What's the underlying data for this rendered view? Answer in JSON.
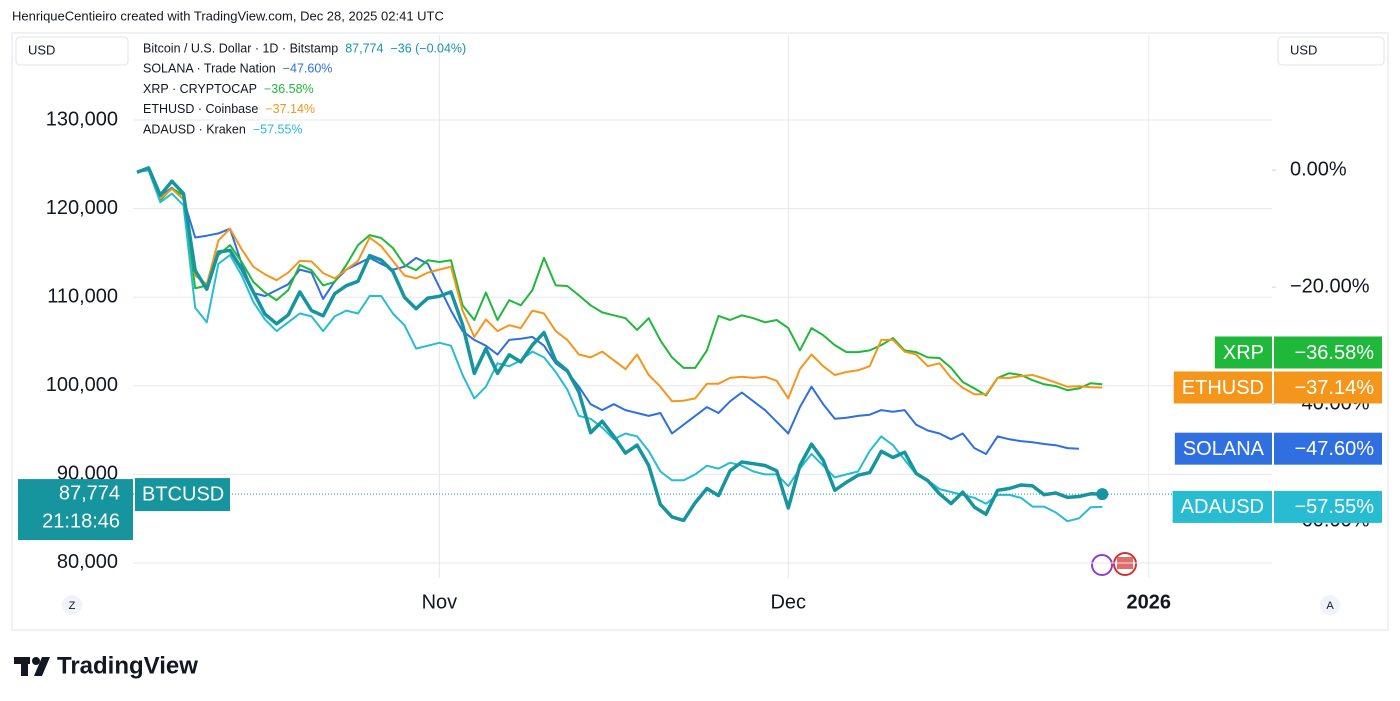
{
  "header": "HenriqueCentieiro created with TradingView.com, Dec 28, 2025 02:41 UTC",
  "brand": "TradingView",
  "buttons": [
    "Z",
    "A"
  ],
  "chart_data": {
    "type": "line",
    "left_unit": "USD",
    "right_unit": "USD",
    "grid": true,
    "categories": [
      null,
      null,
      null,
      null,
      null,
      null,
      null,
      null,
      null,
      null,
      null,
      null,
      null,
      null,
      null,
      null,
      null,
      null,
      null,
      null,
      null,
      null,
      null,
      null,
      null,
      null,
      "Nov",
      null,
      null,
      null,
      null,
      null,
      null,
      null,
      null,
      null,
      null,
      null,
      null,
      null,
      null,
      null,
      null,
      null,
      null,
      null,
      null,
      null,
      null,
      null,
      null,
      null,
      null,
      null,
      null,
      null,
      "Dec",
      null,
      null,
      null,
      null,
      null,
      null,
      null,
      null,
      null,
      null,
      null,
      null,
      null,
      null,
      null,
      null,
      null,
      null,
      null,
      null,
      null,
      null,
      null,
      null,
      null,
      null,
      null,
      null,
      null,
      null,
      "2026",
      null,
      null,
      null,
      null,
      null,
      null,
      null,
      null,
      null,
      null
    ],
    "ylim": [
      78300,
      139600
    ],
    "yticks": [
      {
        "value": 80000,
        "label": "80,000"
      },
      {
        "value": 90000,
        "label": "90,000"
      },
      {
        "value": 100000,
        "label": "100,000"
      },
      {
        "value": 110000,
        "label": "110,000"
      },
      {
        "value": 120000,
        "label": "120,000"
      },
      {
        "value": 130000,
        "label": "130,000"
      }
    ],
    "y2lim": [
      -69.7,
      23.1
    ],
    "y2ticks": [
      {
        "value": 0,
        "label": "0.00%"
      },
      {
        "value": -20,
        "label": "−20.00%"
      },
      {
        "value": -40,
        "label": "−40.00%"
      },
      {
        "value": -60,
        "label": "−60.00%"
      }
    ],
    "series": [
      {
        "name": "BTCUSD",
        "legend_name": "Bitcoin / U.S. Dollar · 1D · Bitstamp",
        "color": "#16959e",
        "last_label": "87,774",
        "change": "−36 (−0.04%)",
        "countdown": "21:18:46",
        "values": [
          124100,
          124600,
          121500,
          123100,
          121700,
          113000,
          110900,
          115100,
          115300,
          113200,
          110600,
          108100,
          107000,
          108000,
          110600,
          108500,
          107900,
          110400,
          111300,
          111800,
          114700,
          114200,
          112900,
          110000,
          108700,
          109900,
          110100,
          110600,
          106900,
          101400,
          104200,
          101400,
          103500,
          102700,
          104600,
          106000,
          102800,
          101700,
          99300,
          94700,
          96000,
          94300,
          92400,
          93300,
          91000,
          86600,
          85200,
          84800,
          86800,
          88400,
          87600,
          90400,
          91400,
          91200,
          91000,
          90400,
          86200,
          91000,
          93400,
          91600,
          88200,
          89100,
          89900,
          90200,
          92600,
          91900,
          92500,
          90100,
          89300,
          87800,
          86700,
          88000,
          86300,
          85500,
          88200,
          88400,
          88800,
          88700,
          87700,
          87900,
          87400,
          87500,
          87800,
          87774,
          null,
          null,
          null,
          null,
          null,
          null,
          null,
          null,
          null,
          null,
          null,
          null,
          null,
          null
        ]
      },
      {
        "name": "SOLANA",
        "legend_name": "SOLANA · Trade Nation",
        "color": "#2f6fe0",
        "axis": "y2",
        "last_label": "−47.60%",
        "values": [
          -0.3,
          0.2,
          -4.5,
          -3,
          -5,
          -11.5,
          -11.2,
          -10.8,
          -10,
          -16,
          -21,
          -21.5,
          -20.5,
          -19.5,
          -17,
          -17.5,
          -22,
          -19,
          -17,
          -16,
          -15,
          -16,
          -17,
          -16.5,
          -15,
          -16,
          -20,
          -24,
          -27.5,
          -29,
          -30,
          -31.5,
          -29,
          -28.8,
          -28.5,
          -30,
          -33,
          -34.5,
          -37,
          -40,
          -41,
          -40,
          -41,
          -41.5,
          -42,
          -41.5,
          -45,
          -43.5,
          -42,
          -40.5,
          -41.5,
          -39.5,
          -38,
          -39.5,
          -41,
          -43,
          -45,
          -40.5,
          -37,
          -40,
          -42.5,
          -42.3,
          -42,
          -41.8,
          -41,
          -41.3,
          -41,
          -43.5,
          -44.5,
          -45,
          -46,
          -45,
          -47.5,
          -48.5,
          -45.5,
          -46,
          -46.3,
          -46.5,
          -46.8,
          -47,
          -47.5,
          -47.6,
          null,
          null,
          null,
          null,
          null,
          null,
          null,
          null,
          null,
          null,
          null,
          null,
          null,
          null,
          null,
          null
        ]
      },
      {
        "name": "XRP",
        "legend_name": "XRP · CRYPTOCAP",
        "color": "#1fb83a",
        "axis": "y2",
        "last_label": "−36.58%",
        "values": [
          -0.3,
          0.3,
          -5.1,
          -3.1,
          -4.3,
          -20.2,
          -19.7,
          -14.5,
          -12.8,
          -15.7,
          -19.1,
          -20.9,
          -22.2,
          -20.5,
          -16.2,
          -17.1,
          -19.7,
          -19.1,
          -16.2,
          -12.8,
          -11.1,
          -11.6,
          -13.3,
          -16.2,
          -17.1,
          -15.4,
          -15.7,
          -15.4,
          -23.1,
          -25.6,
          -20.9,
          -25.6,
          -22.2,
          -23.1,
          -20.5,
          -15,
          -19.7,
          -19.8,
          -21.4,
          -23.1,
          -24.3,
          -24.8,
          -25.3,
          -27.3,
          -25.3,
          -29.1,
          -32,
          -33.8,
          -33.8,
          -30.8,
          -24.9,
          -25.6,
          -24.8,
          -25.3,
          -26,
          -25.6,
          -27,
          -30.8,
          -27,
          -28.2,
          -29.9,
          -31.1,
          -31.1,
          -30.8,
          -29.9,
          -28.7,
          -30.8,
          -31.1,
          -32,
          -32.1,
          -33.8,
          -36.2,
          -37.3,
          -38.5,
          -35.5,
          -34.7,
          -35,
          -35.9,
          -36.6,
          -36.9,
          -37.6,
          -37.3,
          -36.4,
          -36.58,
          null,
          null,
          null,
          null,
          null,
          null,
          null,
          null,
          null,
          null,
          null,
          null,
          null,
          null
        ]
      },
      {
        "name": "ETHUSD",
        "legend_name": "ETHUSD · Coinbase",
        "color": "#f5961c",
        "axis": "y2",
        "last_label": "−37.14%",
        "values": [
          -0.3,
          0,
          -4.8,
          -3.2,
          -5,
          -18,
          -19.5,
          -12,
          -10,
          -13.5,
          -16.5,
          -17.8,
          -18.8,
          -17.5,
          -15.5,
          -15.6,
          -17.6,
          -18.5,
          -17,
          -15.5,
          -11.5,
          -13,
          -15.5,
          -18,
          -18.5,
          -17.5,
          -17,
          -16.5,
          -24,
          -28.5,
          -25.5,
          -27.5,
          -26.5,
          -27,
          -24,
          -24.5,
          -27.5,
          -29,
          -31.5,
          -32,
          -31,
          -32.5,
          -34,
          -31.5,
          -35,
          -37,
          -39.5,
          -39.4,
          -39,
          -36.5,
          -36.5,
          -35.5,
          -35.3,
          -35.5,
          -35.3,
          -36,
          -39,
          -34,
          -31.5,
          -33.5,
          -35,
          -34.5,
          -34.2,
          -33.5,
          -29,
          -29,
          -31,
          -31.5,
          -33.5,
          -33,
          -35.5,
          -37.2,
          -38.3,
          -38.3,
          -35.5,
          -35.5,
          -35.2,
          -35,
          -35.6,
          -36.3,
          -37,
          -36.9,
          -37.1,
          -37.14,
          null,
          null,
          null,
          null,
          null,
          null,
          null,
          null,
          null,
          null,
          null,
          null,
          null,
          null
        ]
      },
      {
        "name": "ADAUSD",
        "legend_name": "ADAUSD · Kraken",
        "color": "#27bcd1",
        "axis": "y2",
        "last_label": "−57.55%",
        "values": [
          -0.3,
          0,
          -5.5,
          -4,
          -6,
          -23.5,
          -26,
          -16,
          -14.5,
          -18,
          -22.5,
          -25.5,
          -27.5,
          -26,
          -24.5,
          -25,
          -27.5,
          -25,
          -24,
          -24.5,
          -21.5,
          -21.5,
          -24.5,
          -26.5,
          -30.5,
          -30,
          -29.5,
          -30,
          -35,
          -39,
          -37,
          -33,
          -33.5,
          -32.5,
          -31,
          -32,
          -34.5,
          -37.5,
          -42,
          -42.5,
          -44,
          -46,
          -45,
          -45.5,
          -48,
          -51.5,
          -53,
          -53,
          -52,
          -50.5,
          -51,
          -50,
          -50.5,
          -51.5,
          -52,
          -52,
          -54,
          -51,
          -48.5,
          -50.5,
          -52.5,
          -52,
          -51.5,
          -48,
          -45.5,
          -47,
          -49.5,
          -52,
          -53,
          -54.5,
          -55,
          -55.5,
          -56,
          -57,
          -55.5,
          -55.5,
          -56,
          -57.5,
          -57.5,
          -58.5,
          -60,
          -59.5,
          -57.6,
          -57.55,
          null,
          null,
          null,
          null,
          null,
          null,
          null,
          null,
          null,
          null,
          null,
          null,
          null,
          null
        ]
      }
    ]
  }
}
